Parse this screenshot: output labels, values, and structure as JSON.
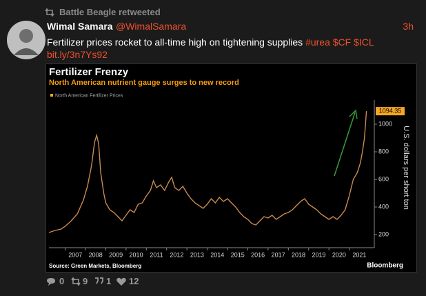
{
  "retweet_header": "Battle Beagle retweeted",
  "tweet": {
    "author_name": "Wimal Samara",
    "handle": "@WimalSamara",
    "time": "3h",
    "text": "Fertilizer prices rocket to all-time high on tightening supplies",
    "hashtags": [
      "#urea",
      "$CF",
      "$ICL"
    ],
    "link": "bit.ly/3n7Ys92"
  },
  "actions": {
    "replies": 0,
    "retweets": 9,
    "quotes": 1,
    "likes": 12
  },
  "chart_data": {
    "type": "line",
    "title": "Fertilizer Frenzy",
    "subtitle": "North American nutrient gauge surges to new record",
    "y_label": "U.S. dollars per short ton",
    "source": "Source: Green Markets, Bloomberg",
    "brand": "Bloomberg",
    "x": [
      2006.2,
      2006.5,
      2006.8,
      2007.0,
      2007.3,
      2007.6,
      2007.9,
      2008.1,
      2008.3,
      2008.45,
      2008.55,
      2008.65,
      2008.75,
      2008.9,
      2009.0,
      2009.2,
      2009.4,
      2009.6,
      2009.8,
      2010.0,
      2010.2,
      2010.4,
      2010.6,
      2010.8,
      2011.0,
      2011.2,
      2011.35,
      2011.5,
      2011.7,
      2011.9,
      2012.1,
      2012.25,
      2012.4,
      2012.6,
      2012.8,
      2013.0,
      2013.2,
      2013.4,
      2013.6,
      2013.8,
      2014.0,
      2014.2,
      2014.4,
      2014.6,
      2014.8,
      2015.0,
      2015.2,
      2015.4,
      2015.6,
      2015.8,
      2016.0,
      2016.2,
      2016.4,
      2016.6,
      2016.8,
      2017.0,
      2017.2,
      2017.4,
      2017.6,
      2017.8,
      2018.0,
      2018.2,
      2018.4,
      2018.6,
      2018.8,
      2019.0,
      2019.2,
      2019.4,
      2019.6,
      2019.8,
      2020.0,
      2020.2,
      2020.4,
      2020.6,
      2020.8,
      2021.0,
      2021.2,
      2021.4,
      2021.55,
      2021.65,
      2021.75,
      2021.85
    ],
    "series": [
      {
        "name": "North American Fertilizer Prices",
        "color": "#c98a52",
        "values": [
          215,
          230,
          240,
          260,
          300,
          350,
          450,
          550,
          700,
          870,
          920,
          860,
          650,
          500,
          430,
          380,
          360,
          330,
          300,
          340,
          380,
          360,
          420,
          430,
          480,
          520,
          590,
          540,
          560,
          520,
          580,
          615,
          540,
          520,
          550,
          500,
          460,
          430,
          410,
          390,
          420,
          460,
          430,
          470,
          440,
          460,
          430,
          400,
          360,
          330,
          310,
          280,
          270,
          300,
          330,
          320,
          340,
          310,
          330,
          350,
          360,
          380,
          410,
          440,
          460,
          420,
          400,
          380,
          350,
          330,
          310,
          330,
          310,
          340,
          380,
          480,
          600,
          650,
          720,
          800,
          900,
          1094.35
        ]
      }
    ],
    "legend_color": "#f5a623",
    "xlim": [
      2006.2,
      2022.1
    ],
    "xticks": [
      2007,
      2008,
      2009,
      2010,
      2011,
      2012,
      2013,
      2014,
      2015,
      2016,
      2017,
      2018,
      2019,
      2020,
      2021
    ],
    "ylim": [
      130,
      1160
    ],
    "yticks": [
      200,
      400,
      600,
      800,
      1000
    ],
    "grid": false
  }
}
